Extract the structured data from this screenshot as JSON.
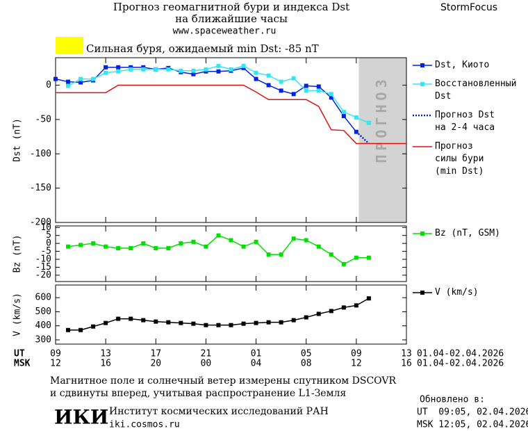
{
  "header": {
    "title_line1": "Прогноз геомагнитной бури и индекса Dst",
    "title_line2": "на ближайшие часы",
    "site": "www.spaceweather.ru",
    "brand": "StormFocus",
    "alert": "Сильная буря, ожидаемый min Dst: -85 nT",
    "alert_color": "#ffff00"
  },
  "chart_data": [
    {
      "type": "line",
      "ylabel": "Dst (nT)",
      "xlim": [
        0,
        28
      ],
      "xticks": [
        0,
        4,
        8,
        12,
        16,
        20,
        24,
        28
      ],
      "ylim": [
        -200,
        40
      ],
      "yticks": [
        -200,
        -150,
        -100,
        -50,
        0
      ],
      "forecast_region": [
        24.2,
        28
      ],
      "forecast_label": "ПРОГНОЗ",
      "series": [
        {
          "name": "Dst, Киото",
          "color": "#0022dd",
          "marker": true,
          "x": [
            0,
            1,
            2,
            3,
            4,
            5,
            6,
            7,
            8,
            9,
            10,
            11,
            12,
            13,
            14,
            15,
            16,
            17,
            18,
            19,
            20,
            21,
            22,
            23,
            24
          ],
          "values": [
            9,
            5,
            4,
            7,
            26,
            26,
            26,
            26,
            23,
            25,
            19,
            16,
            20,
            20,
            21,
            25,
            9,
            0,
            -8,
            -13,
            -1,
            -2,
            -18,
            -45,
            -68
          ]
        },
        {
          "name": "Восстановленный\nDst",
          "color": "#33e6f2",
          "marker": true,
          "x": [
            1,
            2,
            3,
            4,
            5,
            6,
            7,
            8,
            9,
            10,
            11,
            12,
            13,
            14,
            15,
            16,
            17,
            18,
            19,
            20,
            21,
            22,
            23,
            24,
            25
          ],
          "values": [
            -1,
            9,
            9,
            18,
            20,
            23,
            23,
            23,
            23,
            21,
            21,
            23,
            28,
            23,
            28,
            18,
            14,
            5,
            10,
            -8,
            -8,
            -13,
            -39,
            -47,
            -55
          ]
        },
        {
          "name": "Прогноз Dst\nна 2-4 часа",
          "color": "#0022dd",
          "dashed": true,
          "x": [
            24,
            25
          ],
          "values": [
            -68,
            -85
          ]
        },
        {
          "name": "Прогноз\nсилы бури\n(min Dst)",
          "color": "#e01010",
          "x": [
            0,
            4,
            5,
            15,
            16,
            17,
            20,
            21,
            22,
            23,
            24,
            28
          ],
          "values": [
            -11,
            -11,
            0,
            0,
            -10,
            -21,
            -21,
            -31,
            -65,
            -66,
            -85,
            -85
          ]
        }
      ]
    },
    {
      "type": "line",
      "ylabel": "Bz (nT)",
      "xlim": [
        0,
        28
      ],
      "xticks": [
        0,
        4,
        8,
        12,
        16,
        20,
        24,
        28
      ],
      "ylim": [
        -24,
        11
      ],
      "yticks": [
        -20,
        -15,
        -10,
        -5,
        0,
        5,
        10
      ],
      "series": [
        {
          "name": "Bz (nT, GSM)",
          "color": "#00e000",
          "marker": true,
          "x": [
            1,
            2,
            3,
            4,
            5,
            6,
            7,
            8,
            9,
            10,
            11,
            12,
            13,
            14,
            15,
            16,
            17,
            18,
            19,
            20,
            21,
            22,
            23,
            24,
            25
          ],
          "values": [
            -2,
            -1,
            0,
            -2,
            -3,
            -3,
            0,
            -3,
            -3,
            0,
            1,
            -2,
            5,
            2,
            -2,
            1,
            -7,
            -7,
            3,
            2,
            -2,
            -7,
            -13,
            -9,
            -9
          ]
        }
      ]
    },
    {
      "type": "line",
      "ylabel": "V (km/s)",
      "xlim": [
        0,
        28
      ],
      "xticks": [
        {
          "value": 0,
          "label": "09"
        },
        {
          "value": 4,
          "label": "13"
        },
        {
          "value": 8,
          "label": "17"
        },
        {
          "value": 12,
          "label": "21"
        },
        {
          "value": 16,
          "label": "01"
        },
        {
          "value": 20,
          "label": "05"
        },
        {
          "value": 24,
          "label": "09"
        },
        {
          "value": 28,
          "label": "13"
        }
      ],
      "xticks_msk": [
        {
          "value": 0,
          "label": "12"
        },
        {
          "value": 4,
          "label": "16"
        },
        {
          "value": 8,
          "label": "20"
        },
        {
          "value": 12,
          "label": "00"
        },
        {
          "value": 16,
          "label": "04"
        },
        {
          "value": 20,
          "label": "08"
        },
        {
          "value": 24,
          "label": "12"
        },
        {
          "value": 28,
          "label": "16"
        }
      ],
      "x_row_labels": [
        "UT",
        "MSK"
      ],
      "date_ranges": [
        "01.04-02.04.2026",
        "01.04-02.04.2026"
      ],
      "ylim": [
        270,
        690
      ],
      "yticks": [
        300,
        400,
        500,
        600
      ],
      "series": [
        {
          "name": "V (km/s)",
          "color": "#000000",
          "marker": true,
          "x": [
            1,
            2,
            3,
            4,
            5,
            6,
            7,
            8,
            9,
            10,
            11,
            12,
            13,
            14,
            15,
            16,
            17,
            18,
            19,
            20,
            21,
            22,
            23,
            24,
            25
          ],
          "values": [
            370,
            370,
            395,
            420,
            450,
            450,
            440,
            430,
            425,
            420,
            415,
            405,
            405,
            405,
            415,
            420,
            425,
            425,
            440,
            460,
            485,
            505,
            530,
            545,
            595
          ]
        }
      ]
    }
  ],
  "footer": {
    "note_line1": "Магнитное поле и солнечный ветер измерены спутником DSCOVR",
    "note_line2": "и сдвинуты вперед, учитывая распространение L1-Земля",
    "logo": "ИКИ",
    "institute": "Институт космических исследований РАН",
    "website": "iki.cosmos.ru",
    "updated_label": "Обновлено в:",
    "updated_ut": "UT  09:05, 02.04.2026",
    "updated_msk": "MSK 12:05, 02.04.2026"
  }
}
